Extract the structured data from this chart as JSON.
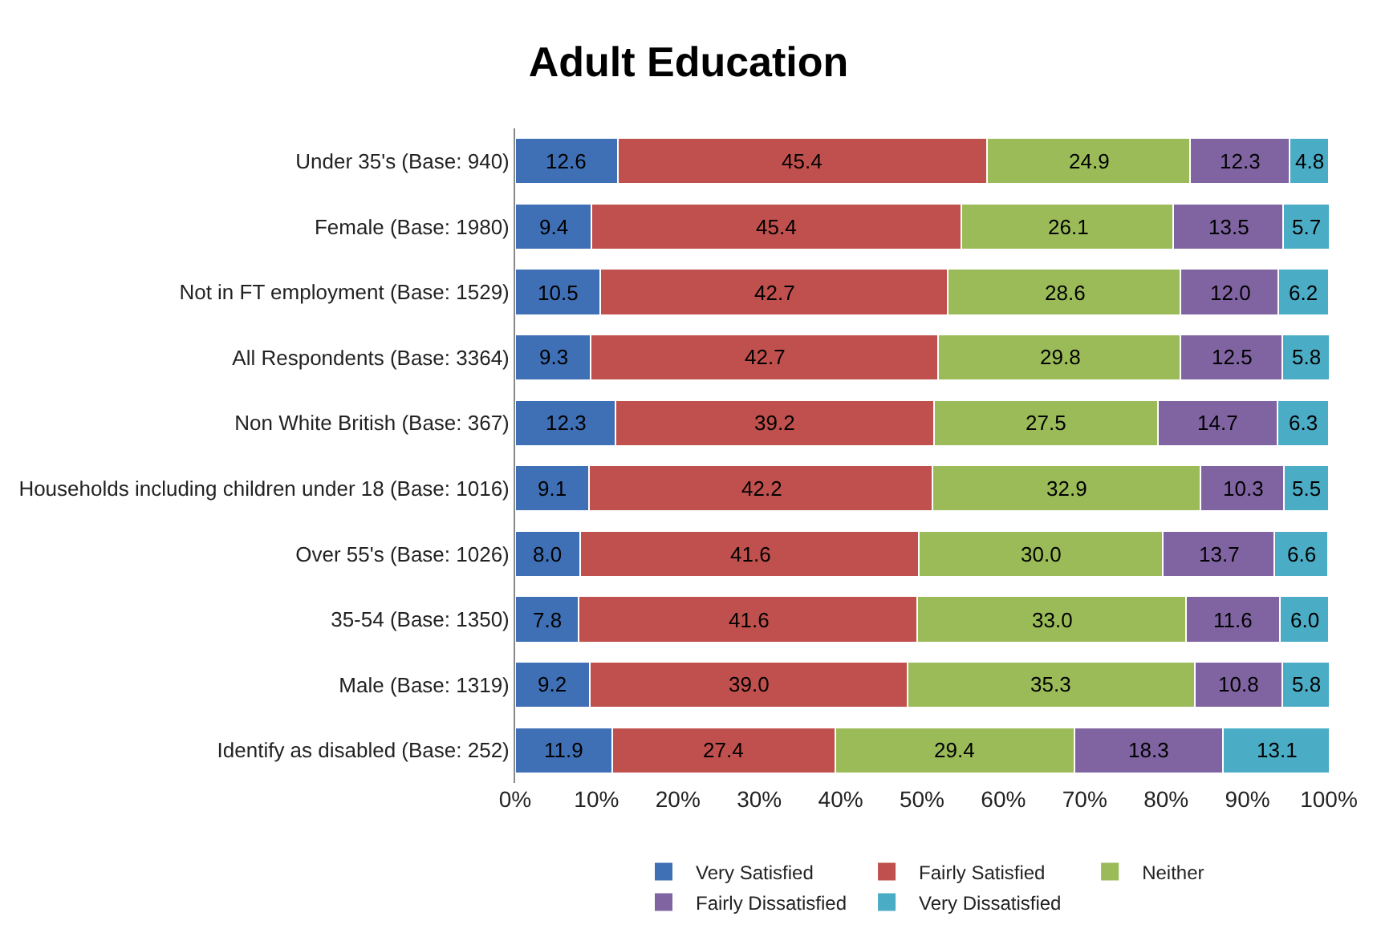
{
  "chart_data": {
    "type": "bar",
    "title": "Adult Education",
    "orientation": "horizontal",
    "stacked": true,
    "grid": false,
    "legend": "bottom",
    "categories": [
      "Under 35's (Base: 940)",
      "Female (Base: 1980)",
      "Not in FT employment (Base: 1529)",
      "All Respondents (Base: 3364)",
      "Non White British (Base: 367)",
      "Households including children under 18 (Base: 1016)",
      "Over 55's (Base: 1026)",
      "35-54 (Base: 1350)",
      "Male (Base: 1319)",
      "Identify as disabled (Base: 252)"
    ],
    "xlim": [
      0,
      100
    ],
    "xticks": [
      {
        "value": 0,
        "label": "0%"
      },
      {
        "value": 10,
        "label": "10%"
      },
      {
        "value": 20,
        "label": "20%"
      },
      {
        "value": 30,
        "label": "30%"
      },
      {
        "value": 40,
        "label": "40%"
      },
      {
        "value": 50,
        "label": "50%"
      },
      {
        "value": 60,
        "label": "60%"
      },
      {
        "value": 70,
        "label": "70%"
      },
      {
        "value": 80,
        "label": "80%"
      },
      {
        "value": 90,
        "label": "90%"
      },
      {
        "value": 100,
        "label": "100%"
      }
    ],
    "series": [
      {
        "name": "Very Satisfied",
        "color": "#3f6fb5",
        "values": [
          12.6,
          9.4,
          10.5,
          9.3,
          12.3,
          9.1,
          8.0,
          7.8,
          9.2,
          11.9
        ],
        "value_labels": [
          "12.6",
          "9.4",
          "10.5",
          "9.3",
          "12.3",
          "9.1",
          "8.0",
          "7.8",
          "9.2",
          "11.9"
        ]
      },
      {
        "name": "Fairly Satisfied",
        "color": "#c0504d",
        "values": [
          45.4,
          45.4,
          42.7,
          42.7,
          39.2,
          42.2,
          41.6,
          41.6,
          39.0,
          27.4
        ],
        "value_labels": [
          "45.4",
          "45.4",
          "42.7",
          "42.7",
          "39.2",
          "42.2",
          "41.6",
          "41.6",
          "39.0",
          "27.4"
        ]
      },
      {
        "name": "Neither",
        "color": "#9bbb59",
        "values": [
          24.9,
          26.1,
          28.6,
          29.8,
          27.5,
          32.9,
          30.0,
          33.0,
          35.3,
          29.4
        ],
        "value_labels": [
          "24.9",
          "26.1",
          "28.6",
          "29.8",
          "27.5",
          "32.9",
          "30.0",
          "33.0",
          "35.3",
          "29.4"
        ]
      },
      {
        "name": "Fairly Dissatisfied",
        "color": "#8064a2",
        "values": [
          12.3,
          13.5,
          12.0,
          12.5,
          14.7,
          10.3,
          13.7,
          11.6,
          10.8,
          18.3
        ],
        "value_labels": [
          "12.3",
          "13.5",
          "12.0",
          "12.5",
          "14.7",
          "10.3",
          "13.7",
          "11.6",
          "10.8",
          "18.3"
        ]
      },
      {
        "name": "Very Dissatisfied",
        "color": "#4bacc6",
        "values": [
          4.8,
          5.7,
          6.2,
          5.8,
          6.3,
          5.5,
          6.6,
          6.0,
          5.8,
          13.1
        ],
        "value_labels": [
          "4.8",
          "5.7",
          "6.2",
          "5.8",
          "6.3",
          "5.5",
          "6.6",
          "6.0",
          "5.8",
          "13.1"
        ]
      }
    ]
  }
}
